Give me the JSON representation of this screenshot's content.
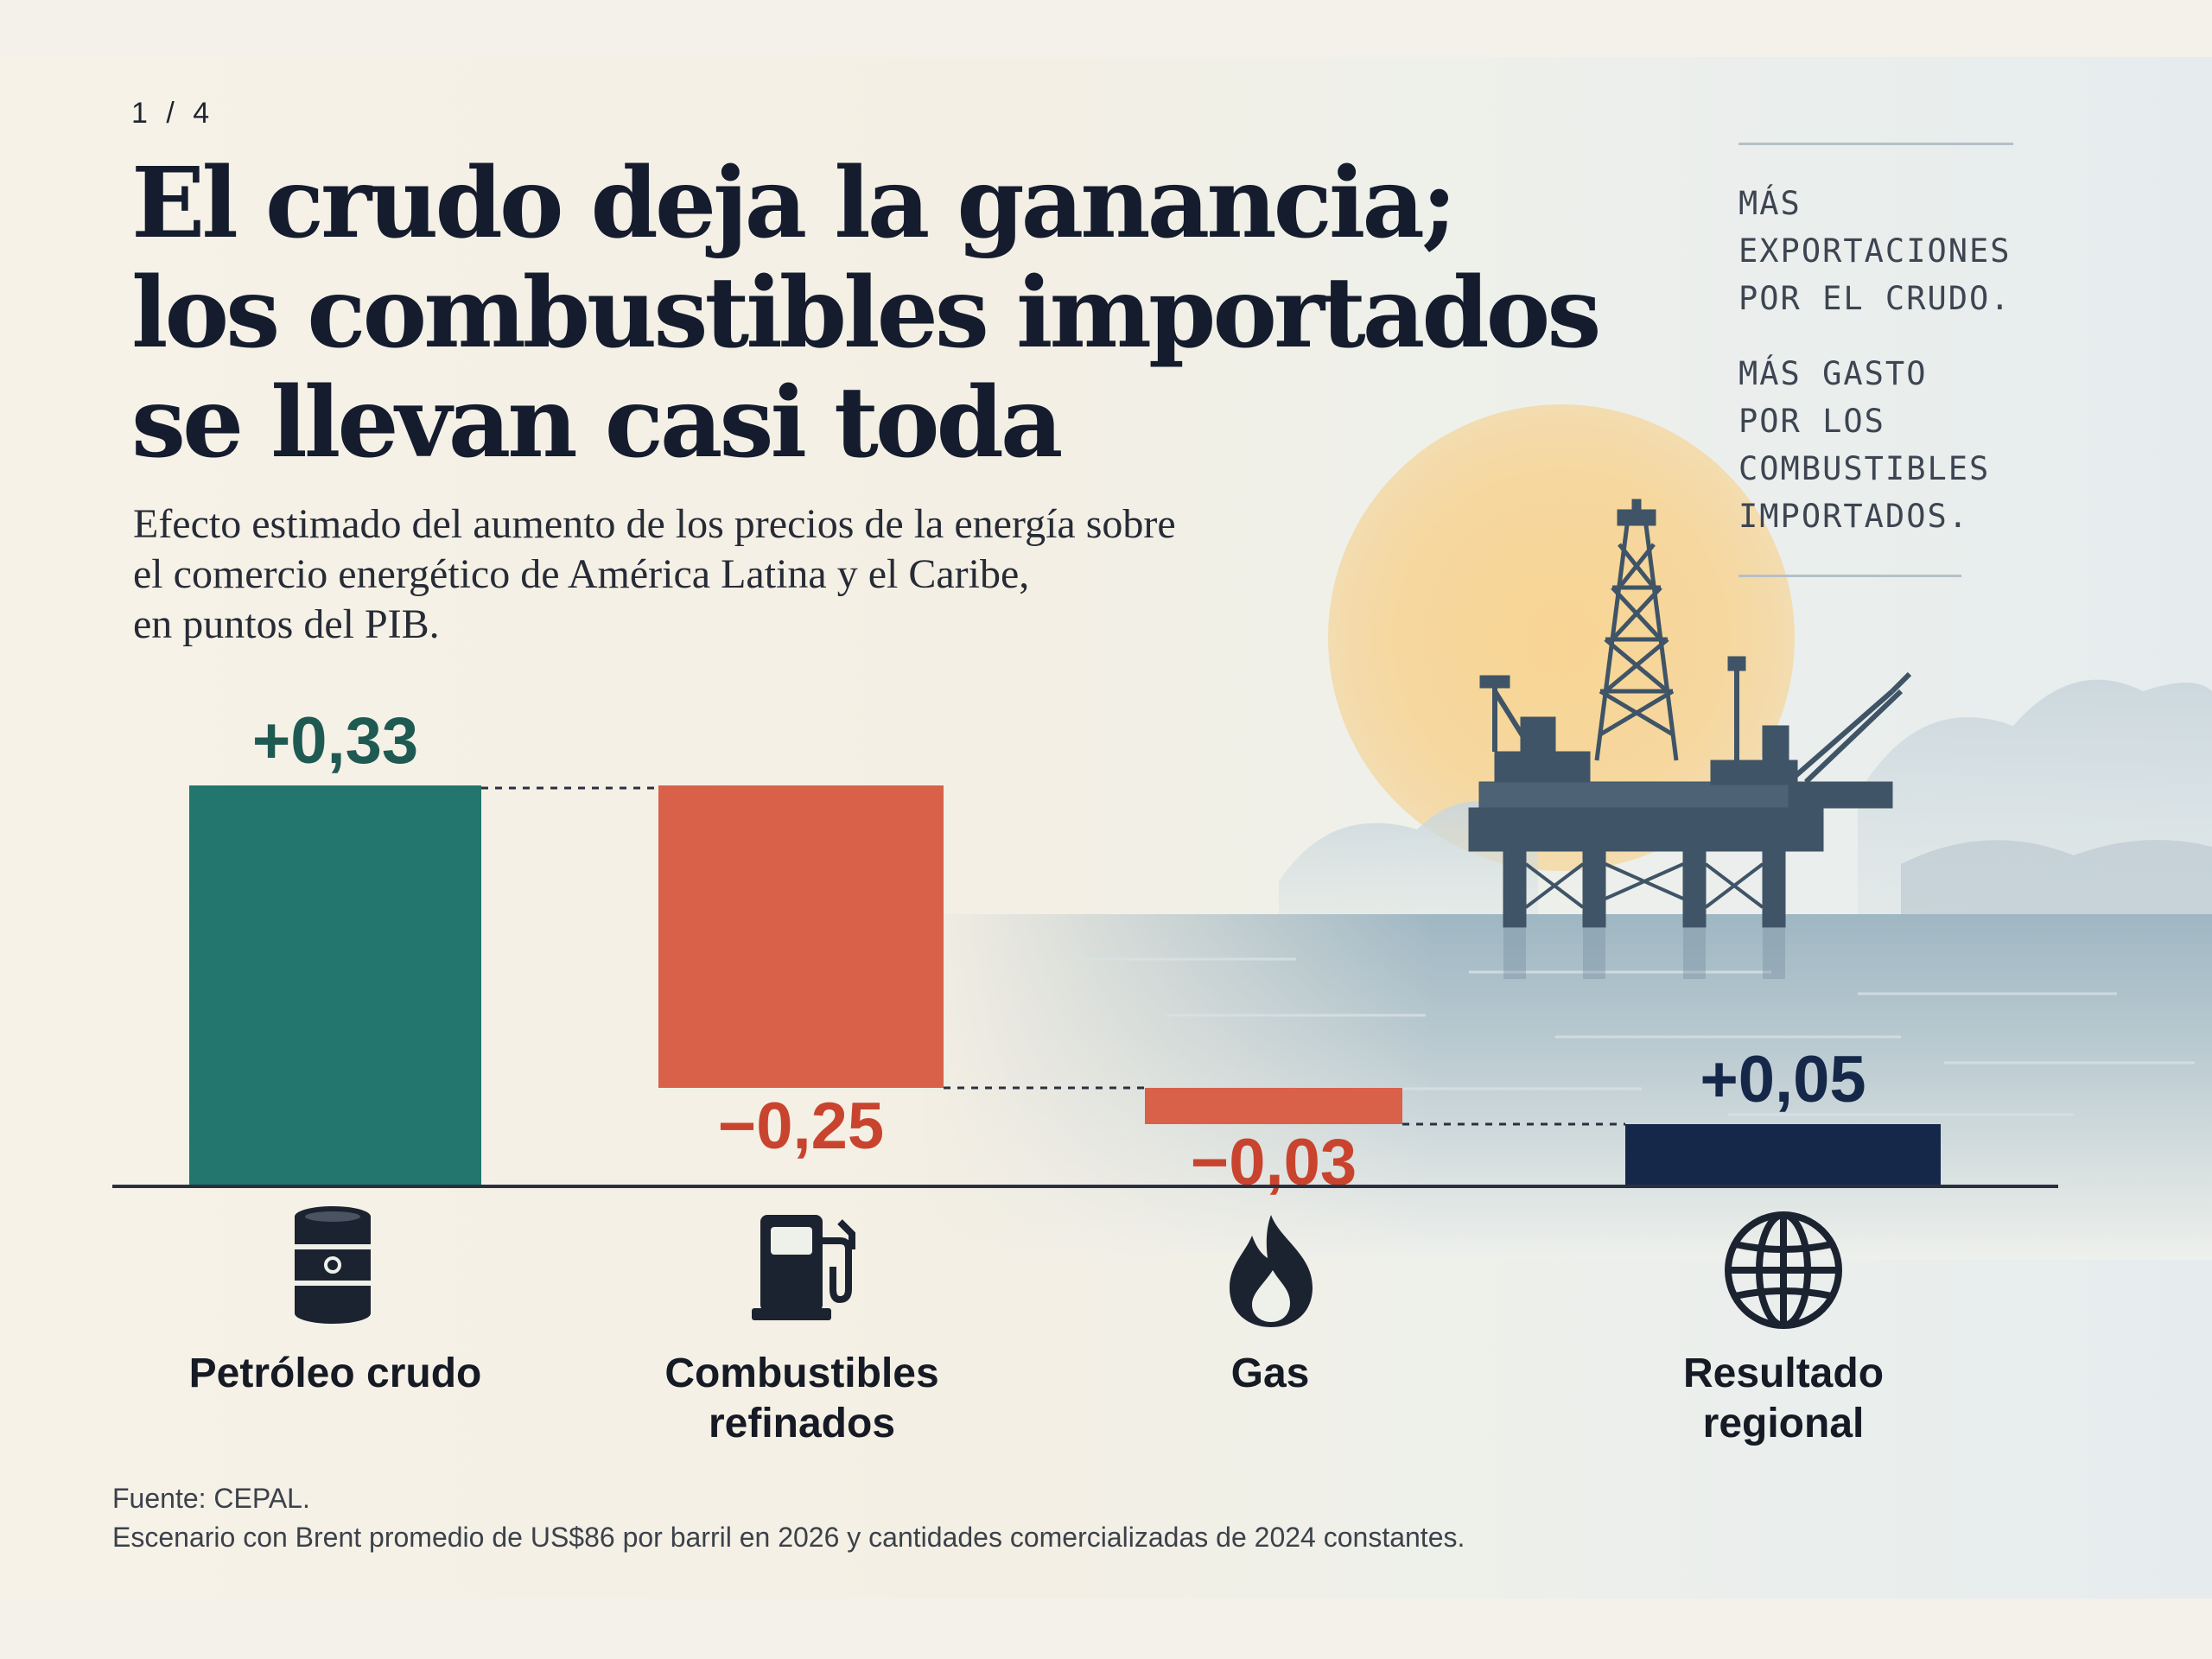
{
  "page_indicator": "1 / 4",
  "title_lines": [
    "El crudo deja la ganancia;",
    "los combustibles importados",
    "se llevan casi toda"
  ],
  "subtitle_lines": [
    "Efecto estimado del aumento de los precios de la energía sobre",
    "el comercio energético de América Latina y el Caribe,",
    "en puntos del PIB."
  ],
  "side_note": {
    "block1": [
      "MÁS",
      "EXPORTACIONES",
      "POR EL CRUDO."
    ],
    "block2": [
      "MÁS GASTO",
      "POR LOS",
      "COMBUSTIBLES",
      "IMPORTADOS."
    ]
  },
  "colors": {
    "positive": "#23766e",
    "negative": "#d9614a",
    "total": "#15284a",
    "positive_label": "#1f5a52",
    "negative_label": "#c8442e",
    "total_label": "#15284a"
  },
  "chart_data": {
    "type": "waterfall",
    "title": "El crudo deja la ganancia; los combustibles importados se llevan casi toda",
    "subtitle": "Efecto estimado del aumento de los precios de la energía sobre el comercio energético de América Latina y el Caribe, en puntos del PIB.",
    "unit": "puntos del PIB",
    "categories": [
      "Petróleo crudo",
      "Combustibles refinados",
      "Gas",
      "Resultado regional"
    ],
    "category_lines": [
      [
        "Petróleo crudo"
      ],
      [
        "Combustibles",
        "refinados"
      ],
      [
        "Gas"
      ],
      [
        "Resultado",
        "regional"
      ]
    ],
    "values": [
      0.33,
      -0.25,
      -0.03,
      0.05
    ],
    "value_labels": [
      "+0,33",
      "−0,25",
      "−0,03",
      "+0,05"
    ],
    "kinds": [
      "increase",
      "decrease",
      "decrease",
      "total"
    ],
    "icons": [
      "oil-barrel-icon",
      "fuel-pump-icon",
      "flame-icon",
      "globe-icon"
    ],
    "ylim": [
      0,
      0.33
    ],
    "grid": false,
    "legend": "none"
  },
  "footer": {
    "source_label": "Fuente:",
    "source_value": "CEPAL.",
    "note": "Escenario con Brent promedio de US$86 por barril en 2026 y cantidades comercializadas de 2024 constantes."
  }
}
